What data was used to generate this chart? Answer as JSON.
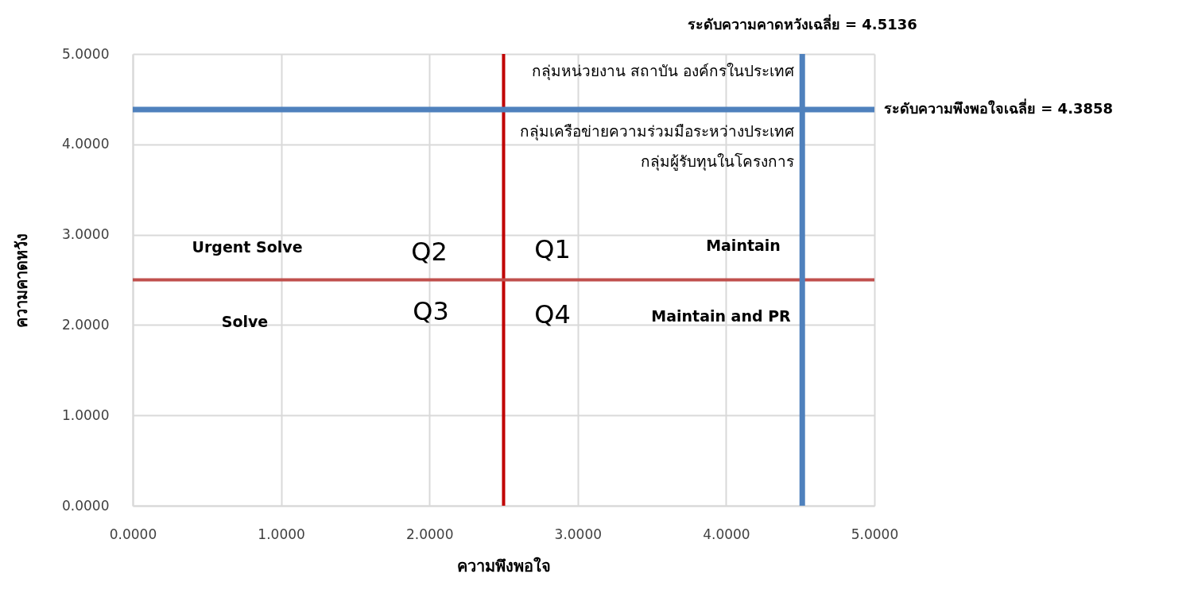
{
  "chart_data": {
    "type": "scatter",
    "xlabel": "ความพึงพอใจ",
    "ylabel": "ความคาดหวัง",
    "xlim": [
      0,
      5
    ],
    "ylim": [
      0,
      5
    ],
    "xticks": [
      {
        "value": 0,
        "label": "0.0000"
      },
      {
        "value": 1,
        "label": "1.0000"
      },
      {
        "value": 2,
        "label": "2.0000"
      },
      {
        "value": 3,
        "label": "3.0000"
      },
      {
        "value": 4,
        "label": "4.0000"
      },
      {
        "value": 5,
        "label": "5.0000"
      }
    ],
    "yticks": [
      {
        "value": 0,
        "label": "0.0000"
      },
      {
        "value": 1,
        "label": "1.0000"
      },
      {
        "value": 2,
        "label": "2.0000"
      },
      {
        "value": 3,
        "label": "3.0000"
      },
      {
        "value": 4,
        "label": "4.0000"
      },
      {
        "value": 5,
        "label": "5.0000"
      }
    ],
    "grid": true,
    "ref_lines": [
      {
        "axis": "x",
        "value": 2.5,
        "color": "#c00000"
      },
      {
        "axis": "y",
        "value": 2.5,
        "color": "#c0504d"
      },
      {
        "axis": "x",
        "value": 4.5136,
        "label": "ระดับความคาดหวังเฉลี่ย = 4.5136",
        "color": "#4f81bd"
      },
      {
        "axis": "y",
        "value": 4.3858,
        "label": "ระดับความพึงพอใจเฉลี่ย = 4.3858",
        "color": "#4f81bd"
      }
    ],
    "annotations": [
      "กลุ่มหน่วยงาน สถาบัน องค์กรในประเทศ",
      "กลุ่มเครือข่ายความร่วมมือระหว่างประเทศ",
      "กลุ่มผู้รับทุนในโครงการ",
      "Urgent Solve",
      "Maintain",
      "Solve",
      "Maintain and PR",
      "Q2",
      "Q1",
      "Q3",
      "Q4"
    ]
  }
}
